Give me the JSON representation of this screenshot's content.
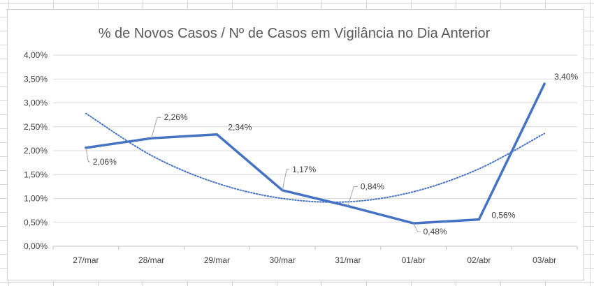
{
  "chart_data": {
    "type": "line",
    "title": "% de Novos Casos / Nº de Casos em Vigilância no Dia Anterior",
    "categories": [
      "27/mar",
      "28/mar",
      "29/mar",
      "30/mar",
      "31/mar",
      "01/abr",
      "02/abr",
      "03/abr"
    ],
    "series": [
      {
        "values": [
          2.06,
          2.26,
          2.34,
          1.17,
          0.84,
          0.48,
          0.56,
          3.4
        ],
        "labels": [
          "2,06%",
          "2,26%",
          "2,34%",
          "1,17%",
          "0,84%",
          "0,48%",
          "0,56%",
          "3,40%"
        ],
        "color": "#4472C4"
      }
    ],
    "trendline": {
      "type": "polynomial",
      "style": "dotted",
      "color": "#4472C4",
      "values": [
        2.78,
        1.9,
        1.32,
        1.0,
        0.93,
        1.14,
        1.62,
        2.36
      ]
    },
    "yticks": [
      "0,00%",
      "0,50%",
      "1,00%",
      "1,50%",
      "2,00%",
      "2,50%",
      "3,00%",
      "3,50%",
      "4,00%"
    ],
    "ylim": [
      0,
      4
    ],
    "gridlines": true,
    "legend": "none",
    "xlabel": "",
    "ylabel": ""
  }
}
